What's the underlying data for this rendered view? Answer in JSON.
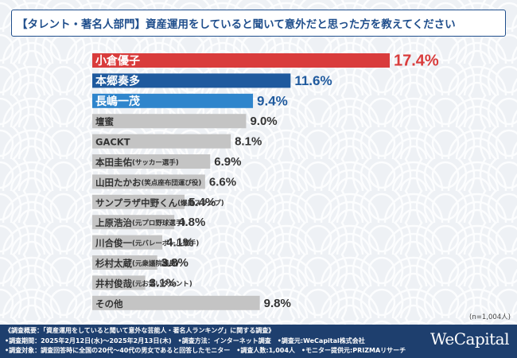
{
  "title": "【タレント・著名人部門】資産運用をしていると聞いて意外だと思った方を教えてください",
  "sample_note": "(n=1,004人)",
  "footer": {
    "lines": [
      "《調査概要：「資産運用をしていると聞いて意外な芸能人・著名人ランキング」に関する調査》",
      "•調査期間：2025年2月12日(水)～2025年2月13日(木)　•調査方法：インターネット調査　•調査元:WeCapital株式会社",
      "•調査対象：調査回答時に全国の20代～40代の男女であると回答したモニター　•調査人数:1,004人　•モニター提供元:PRIZMAリサーチ"
    ],
    "brand": "WeCapital"
  },
  "colors": {
    "highlight_1": "#d93c3c",
    "highlight_2": "#1f5a9e",
    "highlight_3": "#2f85cc",
    "other": "#c4c4c4",
    "title_border": "#1f4e8c",
    "footer_bg": "#1e3f6e"
  },
  "chart_data": {
    "type": "bar",
    "orientation": "horizontal",
    "unit": "%",
    "categories": [
      {
        "name": "小倉優子",
        "note": ""
      },
      {
        "name": "本郷奏多",
        "note": ""
      },
      {
        "name": "長嶋一茂",
        "note": ""
      },
      {
        "name": "壇蜜",
        "note": ""
      },
      {
        "name": "GACKT",
        "note": ""
      },
      {
        "name": "本田圭佑",
        "note": "(サッカー選手)"
      },
      {
        "name": "山田たかお",
        "note": "(笑点座布団運び役)"
      },
      {
        "name": "サンプラザ中野くん",
        "note": "(爆風スランプ)"
      },
      {
        "name": "上原浩治",
        "note": "(元プロ野球選手)"
      },
      {
        "name": "川合俊一",
        "note": "(元バレーボール選手)"
      },
      {
        "name": "杉村太蔵",
        "note": "(元衆議院議員)"
      },
      {
        "name": "井村俊哉",
        "note": "(元お笑いタレント)"
      },
      {
        "name": "その他",
        "note": ""
      }
    ],
    "values": [
      17.4,
      11.6,
      9.4,
      9.0,
      8.1,
      6.9,
      6.6,
      5.4,
      4.8,
      4.1,
      3.8,
      3.1,
      9.8
    ],
    "value_labels": [
      "17.4%",
      "11.6%",
      "9.4%",
      "9.0%",
      "8.1%",
      "6.9%",
      "6.6%",
      "5.4%",
      "4.8%",
      "4.1%",
      "3.8%",
      "3.1%",
      "9.8%"
    ],
    "highlight_ranks": 3,
    "xlim": [
      0,
      17.4
    ]
  }
}
